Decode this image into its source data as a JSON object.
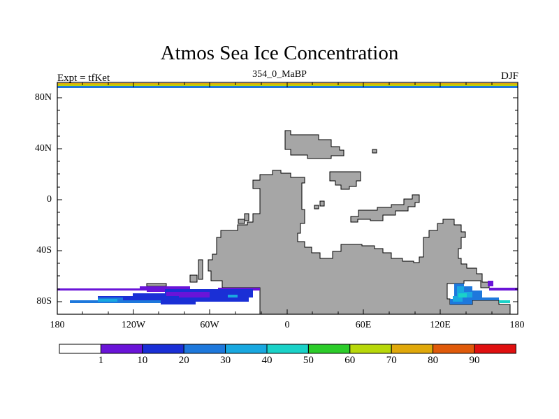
{
  "header": {
    "title": "Atmos Sea Ice Concentration",
    "left": "Expt = tfKet",
    "center": "354_0_MaBP",
    "right": "DJF"
  },
  "axes": {
    "lat_labels": [
      "80N",
      "40N",
      "0",
      "40S",
      "80S"
    ],
    "lon_labels": [
      "180",
      "120W",
      "60W",
      "0",
      "60E",
      "120E",
      "180"
    ]
  },
  "colorbar": {
    "labels": [
      "1",
      "10",
      "20",
      "30",
      "40",
      "50",
      "60",
      "70",
      "80",
      "90"
    ],
    "colors": [
      "#ffffff",
      "#6a14d8",
      "#1a2fd6",
      "#1e78dc",
      "#19a8e0",
      "#1ad2c8",
      "#2ccc2a",
      "#b8d80a",
      "#e0a80a",
      "#e05a0a",
      "#e01010"
    ]
  },
  "colors": {
    "land": "#a6a6a6",
    "frame": "#000000"
  }
}
